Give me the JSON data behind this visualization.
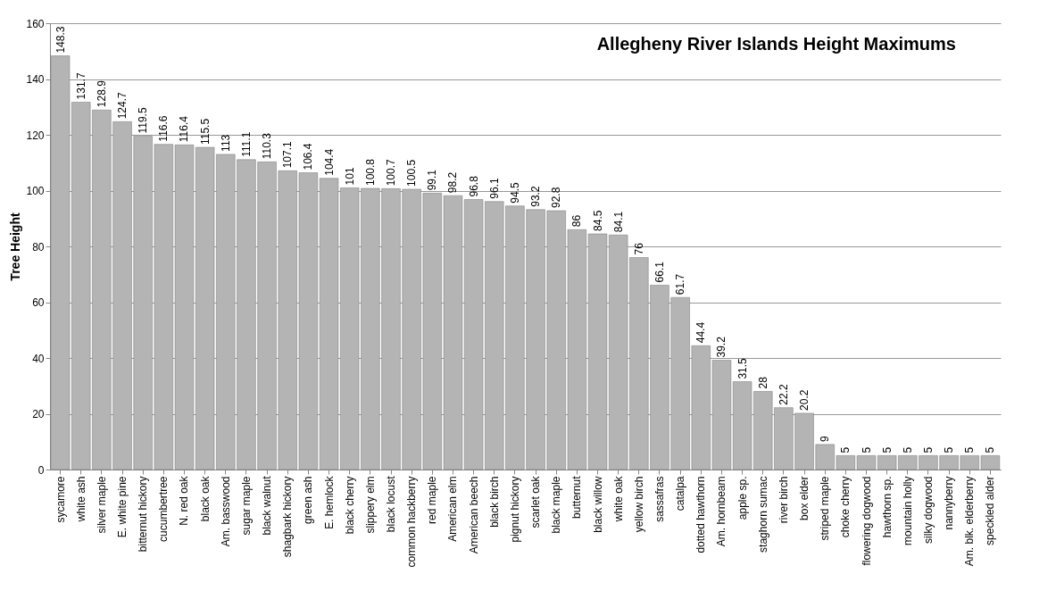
{
  "chart_data": {
    "type": "bar",
    "title": "Allegheny River Islands Height Maximums",
    "ylabel": "Tree Height",
    "categories": [
      "sycamore",
      "white ash",
      "silver maple",
      "E. white pine",
      "bitternut hickory",
      "cucumbertree",
      "N. red oak",
      "black oak",
      "Am. basswood",
      "sugar maple",
      "black walnut",
      "shagbark hickory",
      "green ash",
      "E. hemlock",
      "black cherry",
      "slippery elm",
      "black locust",
      "common hackberry",
      "red maple",
      "American elm",
      "American beech",
      "black birch",
      "pignut hickory",
      "scarlet oak",
      "black maple",
      "butternut",
      "black willow",
      "white oak",
      "yellow birch",
      "sassafras",
      "catalpa",
      "dotted hawthorn",
      "Am. hornbeam",
      "apple sp.",
      "staghorn sumac",
      "river birch",
      "box elder",
      "striped maple",
      "choke cherry",
      "flowering dogwood",
      "hawthorn sp.",
      "mountain holly",
      "silky dogwood",
      "nannyberry",
      "Am. blk. elderberry",
      "speckled alder"
    ],
    "values": [
      148.3,
      131.7,
      128.9,
      124.7,
      119.5,
      116.6,
      116.4,
      115.5,
      113,
      111.1,
      110.3,
      107.1,
      106.4,
      104.4,
      101,
      100.8,
      100.7,
      100.5,
      99.1,
      98.2,
      96.8,
      96.1,
      94.5,
      93.2,
      92.8,
      86,
      84.5,
      84.1,
      76,
      66.1,
      61.7,
      44.4,
      39.2,
      31.5,
      28,
      22.2,
      20.2,
      9,
      5,
      5,
      5,
      5,
      5,
      5,
      5,
      5
    ],
    "color": "#b4b4b4",
    "ylim": [
      0,
      160
    ],
    "yticks": [
      0,
      20,
      40,
      60,
      80,
      100,
      120,
      140,
      160
    ],
    "grid": "y",
    "data_labels": true
  }
}
